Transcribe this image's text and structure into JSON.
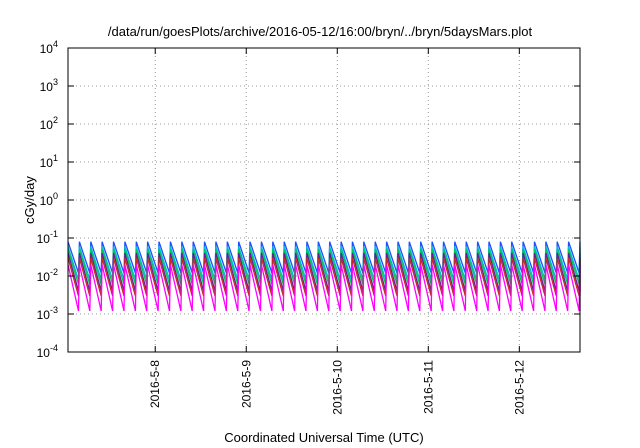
{
  "chart_data": {
    "type": "line",
    "title": "/data/run/goesPlots/archive/2016-05-12/16:00/bryn/../bryn/5daysMars.plot",
    "xlabel": "Coordinated Universal Time (UTC)",
    "ylabel": "cGy/day",
    "y_scale": "log",
    "ylim": [
      0.0001,
      10000
    ],
    "xlim": [
      "2016-05-07 01:00",
      "2016-05-12 16:00"
    ],
    "x_ticks": [
      "2016-5-8",
      "2016-5-9",
      "2016-5-10",
      "2016-5-11",
      "2016-5-12"
    ],
    "y_ticks": [
      {
        "mantissa": "10",
        "exp": "-4"
      },
      {
        "mantissa": "10",
        "exp": "-3"
      },
      {
        "mantissa": "10",
        "exp": "-2"
      },
      {
        "mantissa": "10",
        "exp": "-1"
      },
      {
        "mantissa": "10",
        "exp": "0"
      },
      {
        "mantissa": "10",
        "exp": "1"
      },
      {
        "mantissa": "10",
        "exp": "2"
      },
      {
        "mantissa": "10",
        "exp": "3"
      },
      {
        "mantissa": "10",
        "exp": "4"
      }
    ],
    "grid": true,
    "sawtooth_period_hours": 3,
    "series": [
      {
        "color": "#1f4fff",
        "peak": 0.08,
        "trough": 0.012
      },
      {
        "color": "#00bcd4",
        "peak": 0.06,
        "trough": 0.008
      },
      {
        "color": "#00c853",
        "peak": 0.05,
        "trough": 0.006
      },
      {
        "color": "#6a1b9a",
        "peak": 0.04,
        "trough": 0.004
      },
      {
        "color": "#c62828",
        "peak": 0.03,
        "trough": 0.003
      },
      {
        "color": "#ff00ff",
        "peak": 0.02,
        "trough": 0.0012
      }
    ]
  }
}
